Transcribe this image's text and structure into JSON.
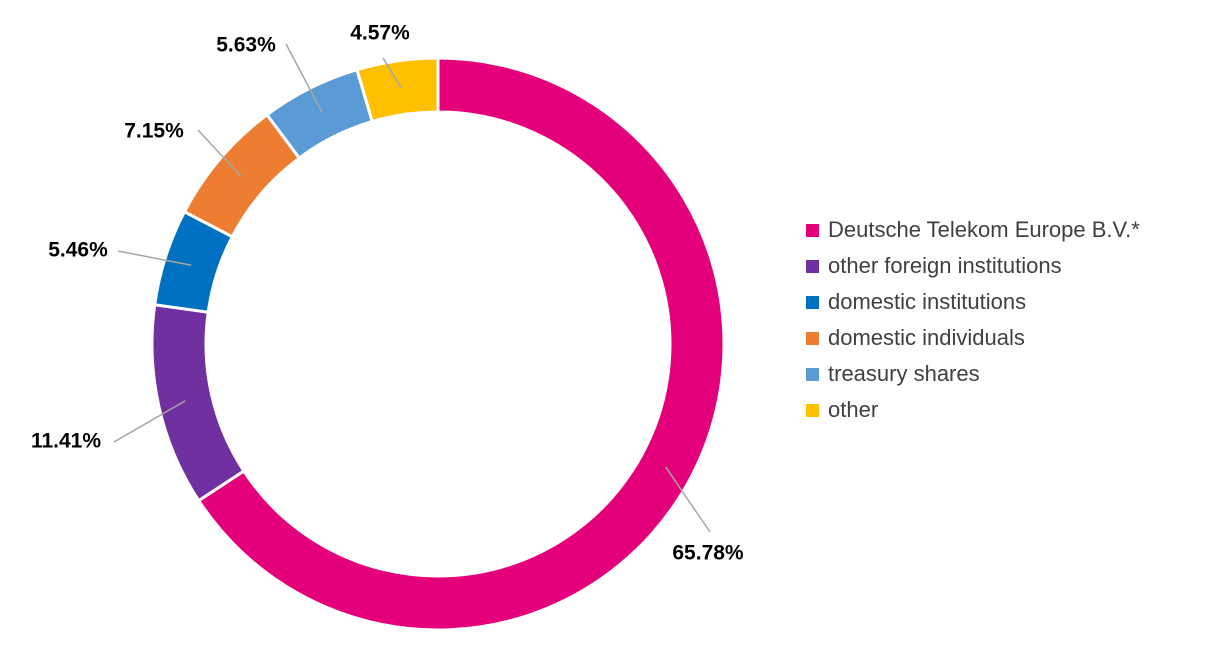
{
  "chart_data": {
    "type": "pie",
    "variant": "donut",
    "title": "",
    "series": [
      {
        "name": "",
        "labels": [
          "Deutsche Telekom Europe B.V.*",
          "other foreign institutions",
          "domestic institutions",
          "domestic individuals",
          "treasury shares",
          "other"
        ],
        "values": [
          65.78,
          11.41,
          5.46,
          7.15,
          5.63,
          4.57
        ],
        "value_labels": [
          "65.78%",
          "11.41%",
          "5.46%",
          "7.15%",
          "5.63%",
          "4.57%"
        ],
        "colors": [
          "#E4007A",
          "#7030A0",
          "#0070C0",
          "#ED7D31",
          "#5B9BD5",
          "#FFC000"
        ]
      }
    ],
    "legend_position": "right",
    "start_angle": "top, clockwise"
  }
}
